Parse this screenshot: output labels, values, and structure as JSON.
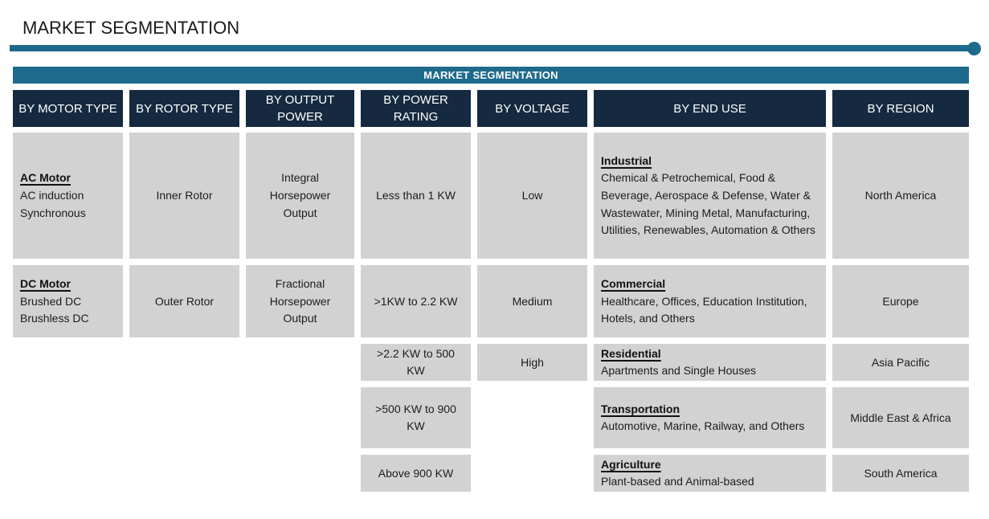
{
  "page": {
    "title": "MARKET SEGMENTATION"
  },
  "accent_colors": {
    "teal": "#1D6A8C",
    "navy": "#152A40",
    "cell_gray": "#D2D2D2"
  },
  "table": {
    "banner": "MARKET SEGMENTATION",
    "columns": [
      {
        "header": "BY MOTOR TYPE",
        "cells": [
          {
            "heading": "AC Motor",
            "body": "AC induction\nSynchronous"
          },
          {
            "heading": "DC Motor",
            "body": "Brushed DC\nBrushless DC"
          }
        ]
      },
      {
        "header": "BY ROTOR TYPE",
        "cells": [
          {
            "body": "Inner Rotor"
          },
          {
            "body": "Outer Rotor"
          }
        ]
      },
      {
        "header": "BY OUTPUT POWER",
        "cells": [
          {
            "body": "Integral Horsepower Output"
          },
          {
            "body": "Fractional Horsepower Output"
          }
        ]
      },
      {
        "header": "BY POWER RATING",
        "cells": [
          {
            "body": "Less than 1 KW"
          },
          {
            "body": ">1KW to 2.2 KW"
          },
          {
            "body": ">2.2 KW to 500 KW"
          },
          {
            "body": ">500 KW to 900 KW"
          },
          {
            "body": "Above 900 KW"
          }
        ]
      },
      {
        "header": "BY VOLTAGE",
        "cells": [
          {
            "body": "Low"
          },
          {
            "body": "Medium"
          },
          {
            "body": "High"
          }
        ]
      },
      {
        "header": "BY END USE",
        "cells": [
          {
            "heading": "Industrial",
            "body": "Chemical & Petrochemical, Food & Beverage, Aerospace & Defense, Water & Wastewater, Mining  Metal, Manufacturing, Utilities, Renewables, Automation & Others"
          },
          {
            "heading": "Commercial",
            "body": "Healthcare, Offices, Education Institution, Hotels, and Others"
          },
          {
            "heading": "Residential",
            "body": "Apartments and Single Houses"
          },
          {
            "heading": "Transportation",
            "body": "Automotive, Marine, Railway, and Others"
          },
          {
            "heading": "Agriculture",
            "body": "Plant-based and Animal-based"
          }
        ]
      },
      {
        "header": "BY REGION",
        "cells": [
          {
            "body": "North America"
          },
          {
            "body": "Europe"
          },
          {
            "body": "Asia Pacific"
          },
          {
            "body": "Middle East & Africa"
          },
          {
            "body": "South America"
          }
        ]
      }
    ]
  }
}
